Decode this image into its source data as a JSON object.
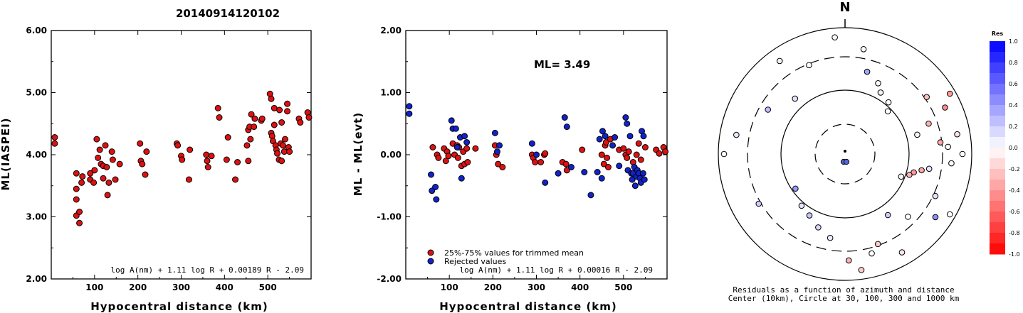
{
  "title": "20140914120102",
  "colors": {
    "red": "#dd1111",
    "blue": "#1122cc"
  },
  "chart_data": [
    {
      "type": "scatter",
      "xlabel": "Hypocentral distance (km)",
      "ylabel": "ML(IASPEI)",
      "xlim": [
        0,
        600
      ],
      "ylim": [
        2.0,
        6.0
      ],
      "xticks": [
        "100",
        "200",
        "300",
        "400",
        "500"
      ],
      "yticks": [
        "2.00",
        "3.00",
        "4.00",
        "5.00",
        "6.00"
      ],
      "formula": "log A(nm) + 1.11 log R + 0.00189 R - 2.09",
      "points": [
        [
          8,
          4.28
        ],
        [
          8,
          4.18
        ],
        [
          58,
          3.7
        ],
        [
          58,
          3.45
        ],
        [
          58,
          3.28
        ],
        [
          58,
          3.02
        ],
        [
          65,
          3.08
        ],
        [
          65,
          2.9
        ],
        [
          70,
          3.55
        ],
        [
          72,
          3.65
        ],
        [
          90,
          3.6
        ],
        [
          90,
          3.7
        ],
        [
          98,
          3.55
        ],
        [
          100,
          3.75
        ],
        [
          105,
          4.25
        ],
        [
          108,
          3.95
        ],
        [
          112,
          4.08
        ],
        [
          115,
          3.85
        ],
        [
          120,
          3.62
        ],
        [
          120,
          3.82
        ],
        [
          125,
          4.15
        ],
        [
          128,
          3.8
        ],
        [
          130,
          3.35
        ],
        [
          133,
          3.55
        ],
        [
          140,
          4.05
        ],
        [
          142,
          3.92
        ],
        [
          148,
          3.6
        ],
        [
          158,
          3.85
        ],
        [
          205,
          4.18
        ],
        [
          207,
          3.9
        ],
        [
          210,
          3.85
        ],
        [
          217,
          3.68
        ],
        [
          220,
          4.05
        ],
        [
          290,
          4.18
        ],
        [
          292,
          4.15
        ],
        [
          300,
          3.98
        ],
        [
          302,
          3.92
        ],
        [
          318,
          3.6
        ],
        [
          320,
          4.08
        ],
        [
          358,
          4.0
        ],
        [
          360,
          3.9
        ],
        [
          362,
          3.8
        ],
        [
          370,
          3.98
        ],
        [
          385,
          4.75
        ],
        [
          388,
          4.6
        ],
        [
          405,
          3.92
        ],
        [
          408,
          4.28
        ],
        [
          425,
          3.6
        ],
        [
          430,
          3.88
        ],
        [
          452,
          4.15
        ],
        [
          455,
          4.4
        ],
        [
          455,
          3.9
        ],
        [
          458,
          4.45
        ],
        [
          460,
          4.25
        ],
        [
          462,
          4.65
        ],
        [
          468,
          4.45
        ],
        [
          470,
          4.58
        ],
        [
          485,
          4.55
        ],
        [
          487,
          4.58
        ],
        [
          505,
          4.98
        ],
        [
          508,
          4.9
        ],
        [
          508,
          4.35
        ],
        [
          510,
          4.3
        ],
        [
          512,
          4.22
        ],
        [
          515,
          4.48
        ],
        [
          515,
          4.75
        ],
        [
          518,
          4.15
        ],
        [
          520,
          4.08
        ],
        [
          522,
          4.02
        ],
        [
          526,
          3.92
        ],
        [
          527,
          4.72
        ],
        [
          530,
          4.18
        ],
        [
          532,
          4.52
        ],
        [
          532,
          3.9
        ],
        [
          535,
          4.15
        ],
        [
          538,
          4.05
        ],
        [
          540,
          4.25
        ],
        [
          545,
          4.82
        ],
        [
          545,
          4.7
        ],
        [
          548,
          4.12
        ],
        [
          550,
          4.05
        ],
        [
          572,
          4.58
        ],
        [
          575,
          4.52
        ],
        [
          592,
          4.68
        ],
        [
          595,
          4.6
        ]
      ]
    },
    {
      "type": "scatter",
      "xlabel": "Hypocentral distance (km)",
      "ylabel": "ML - ML(evt)",
      "xlim": [
        0,
        600
      ],
      "ylim": [
        -2.0,
        2.0
      ],
      "xticks": [
        "100",
        "200",
        "300",
        "400",
        "500"
      ],
      "yticks": [
        "-2.00",
        "-1.00",
        "0.00",
        "1.00",
        "2.00"
      ],
      "annotation": "ML= 3.49",
      "formula": "log A(nm) + 1.11 log R + 0.00016 R - 2.09",
      "legend": [
        "25%-75% values for trimmed mean",
        "Rejected values"
      ],
      "series": [
        {
          "name": "25%-75% values for trimmed mean",
          "points": [
            [
              62,
              0.12
            ],
            [
              72,
              0.0
            ],
            [
              75,
              -0.05
            ],
            [
              88,
              0.1
            ],
            [
              92,
              -0.1
            ],
            [
              95,
              0.05
            ],
            [
              98,
              -0.02
            ],
            [
              108,
              0.18
            ],
            [
              112,
              0.0
            ],
            [
              118,
              0.15
            ],
            [
              120,
              -0.05
            ],
            [
              122,
              0.12
            ],
            [
              128,
              -0.18
            ],
            [
              132,
              0.05
            ],
            [
              135,
              -0.15
            ],
            [
              140,
              0.1
            ],
            [
              142,
              -0.12
            ],
            [
              160,
              0.1
            ],
            [
              205,
              0.15
            ],
            [
              208,
              0.0
            ],
            [
              212,
              -0.15
            ],
            [
              222,
              -0.2
            ],
            [
              290,
              0.0
            ],
            [
              293,
              -0.05
            ],
            [
              297,
              -0.12
            ],
            [
              310,
              -0.12
            ],
            [
              318,
              0.0
            ],
            [
              320,
              0.02
            ],
            [
              360,
              -0.12
            ],
            [
              368,
              -0.15
            ],
            [
              370,
              -0.25
            ],
            [
              405,
              0.08
            ],
            [
              450,
              0.0
            ],
            [
              455,
              -0.15
            ],
            [
              458,
              0.15
            ],
            [
              460,
              0.2
            ],
            [
              462,
              -0.05
            ],
            [
              465,
              -0.2
            ],
            [
              470,
              0.25
            ],
            [
              490,
              0.08
            ],
            [
              500,
              0.1
            ],
            [
              505,
              0.0
            ],
            [
              508,
              -0.05
            ],
            [
              512,
              0.05
            ],
            [
              522,
              -0.12
            ],
            [
              530,
              0.0
            ],
            [
              535,
              0.18
            ],
            [
              540,
              -0.08
            ],
            [
              550,
              0.12
            ],
            [
              575,
              0.08
            ],
            [
              582,
              0.02
            ],
            [
              592,
              0.12
            ],
            [
              596,
              0.05
            ]
          ]
        },
        {
          "name": "Rejected values",
          "points": [
            [
              8,
              0.78
            ],
            [
              8,
              0.66
            ],
            [
              58,
              -0.32
            ],
            [
              60,
              -0.58
            ],
            [
              68,
              -0.52
            ],
            [
              70,
              -0.72
            ],
            [
              105,
              0.55
            ],
            [
              108,
              0.42
            ],
            [
              115,
              0.42
            ],
            [
              118,
              0.12
            ],
            [
              125,
              0.28
            ],
            [
              128,
              -0.38
            ],
            [
              135,
              0.3
            ],
            [
              140,
              0.2
            ],
            [
              205,
              0.35
            ],
            [
              210,
              0.05
            ],
            [
              215,
              0.15
            ],
            [
              290,
              0.18
            ],
            [
              300,
              0.0
            ],
            [
              320,
              -0.45
            ],
            [
              350,
              -0.3
            ],
            [
              365,
              0.6
            ],
            [
              370,
              0.45
            ],
            [
              380,
              -0.2
            ],
            [
              410,
              -0.28
            ],
            [
              425,
              -0.65
            ],
            [
              440,
              -0.28
            ],
            [
              445,
              0.25
            ],
            [
              450,
              -0.38
            ],
            [
              452,
              0.38
            ],
            [
              458,
              0.3
            ],
            [
              475,
              0.15
            ],
            [
              480,
              0.28
            ],
            [
              490,
              -0.18
            ],
            [
              505,
              0.6
            ],
            [
              508,
              0.5
            ],
            [
              510,
              -0.25
            ],
            [
              515,
              0.3
            ],
            [
              518,
              -0.3
            ],
            [
              520,
              -0.4
            ],
            [
              522,
              -0.3
            ],
            [
              525,
              -0.2
            ],
            [
              527,
              -0.5
            ],
            [
              530,
              -0.35
            ],
            [
              532,
              -0.25
            ],
            [
              535,
              -0.3
            ],
            [
              538,
              -0.38
            ],
            [
              540,
              -0.45
            ],
            [
              542,
              0.38
            ],
            [
              545,
              -0.3
            ],
            [
              546,
              0.3
            ],
            [
              548,
              -0.4
            ]
          ]
        }
      ]
    },
    {
      "type": "scatter",
      "kind": "polar residual map",
      "north_label": "N",
      "caption_line1": "Residuals as a function of azimuth and distance",
      "caption_line2": "Center (10km), Circle at 30, 100, 300 and 1000 km",
      "colorbar_title": "Res",
      "colorbar_ticks": [
        "1.0",
        "0.8",
        "0.6",
        "0.4",
        "0.2",
        "0.0",
        "-0.2",
        "-0.4",
        "-0.6",
        "-0.8",
        "-1.0"
      ],
      "stations_az_res": [
        [
          355,
          0.02
        ],
        [
          10,
          0.02
        ],
        [
          15,
          0.35
        ],
        [
          25,
          0.02
        ],
        [
          30,
          0.05
        ],
        [
          40,
          0.0
        ],
        [
          45,
          0.02
        ],
        [
          55,
          -0.25
        ],
        [
          60,
          -0.4
        ],
        [
          65,
          -0.45
        ],
        [
          70,
          -0.3
        ],
        [
          75,
          -0.05
        ],
        [
          80,
          -0.12
        ],
        [
          83,
          -0.35
        ],
        [
          86,
          0.0
        ],
        [
          90,
          0.0
        ],
        [
          95,
          0.03
        ],
        [
          100,
          0.1
        ],
        [
          102,
          -0.35
        ],
        [
          105,
          -0.4
        ],
        [
          108,
          -0.3
        ],
        [
          112,
          -0.05
        ],
        [
          115,
          0.12
        ],
        [
          120,
          0.0
        ],
        [
          125,
          0.45
        ],
        [
          135,
          0.0
        ],
        [
          145,
          0.2
        ],
        [
          150,
          -0.1
        ],
        [
          160,
          -0.2
        ],
        [
          165,
          0.0
        ],
        [
          172,
          -0.2
        ],
        [
          178,
          -0.3
        ],
        [
          190,
          0.08
        ],
        [
          200,
          0.15
        ],
        [
          210,
          0.22
        ],
        [
          220,
          0.1
        ],
        [
          235,
          0.4
        ],
        [
          240,
          0.2
        ],
        [
          270,
          0.0
        ],
        [
          280,
          0.1
        ],
        [
          300,
          0.25
        ],
        [
          318,
          0.12
        ],
        [
          325,
          0.05
        ],
        [
          338,
          0.0
        ]
      ]
    }
  ]
}
